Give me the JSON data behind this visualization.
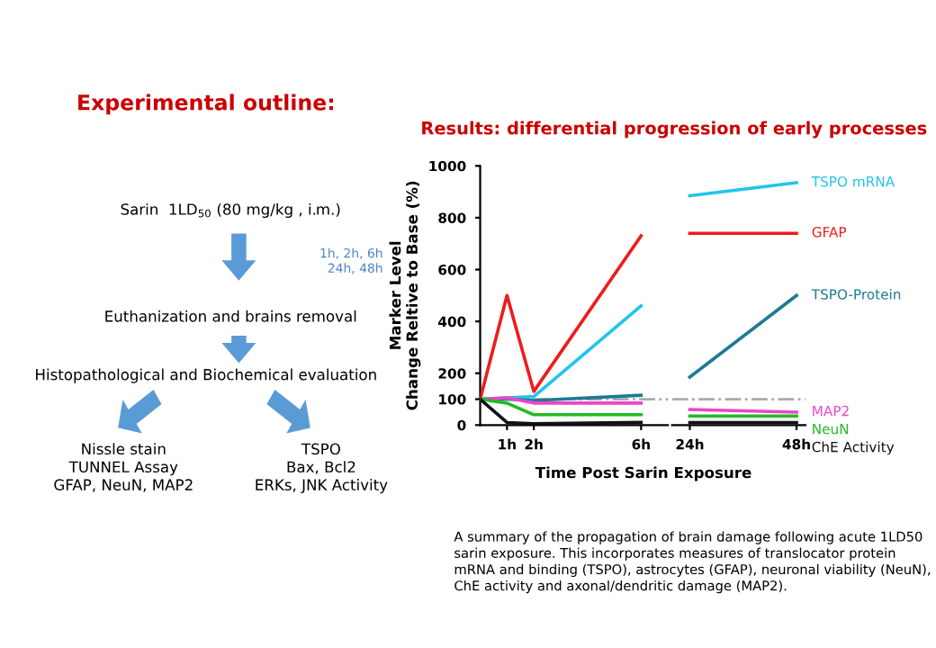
{
  "chart_data": [
    {
      "type": "other",
      "title": "Experimental outline:",
      "annotations": [
        "Sarin  1LD$_{50}$ (80 mg/kg , i.m.)",
        "1h, 2h, 6h\n  24h, 48h",
        "Euthanization and brains removal",
        "Histopathological and Biochemical evaluation",
        "Nissle stain\nTUNNEL Assay\nGFAP, NeuN, MAP2",
        "TSPO\nBax, Bcl2\nERKs, JNK Activity"
      ]
    },
    {
      "type": "line",
      "title": "Results: differential progression of early processes",
      "xlabel": "Time Post Sarin Exposure",
      "ylabel": "Marker Level\nChange Reltive to Base (%)",
      "x": [
        0,
        1,
        2,
        6
      ],
      "series": [
        {
          "color": "#22c4ec",
          "values": [
            100,
            105,
            110,
            460
          ]
        },
        {
          "color": "#ee1c1c",
          "values": [
            100,
            500,
            130,
            730
          ]
        },
        {
          "color": "#1d7a94",
          "values": [
            100,
            100,
            95,
            115
          ]
        },
        {
          "color": "#ee44cc",
          "values": [
            100,
            105,
            85,
            85
          ]
        },
        {
          "color": "#22bb22",
          "values": [
            100,
            85,
            40,
            40
          ]
        },
        {
          "color": "#111111",
          "values": [
            100,
            10,
            5,
            10
          ]
        }
      ],
      "xlim": [
        0,
        7
      ],
      "xticks": [
        {
          "value": 1,
          "label": "1h"
        },
        {
          "value": 2,
          "label": "2h"
        },
        {
          "value": 6,
          "label": "6h"
        }
      ],
      "ylim": [
        0,
        1000
      ],
      "yticks": [
        0,
        100,
        200,
        400,
        600,
        800,
        1000
      ],
      "ref_lines": [
        {
          "axis": "y",
          "value": 100,
          "color": "#aaaaaa",
          "line_style": "dashdot"
        }
      ],
      "grid": false,
      "legend": false,
      "marker": "none",
      "line_style": "solid",
      "annotations": [
        "A summary of the propagation of brain damage following acute 1LD50 sarin exposure. This incorporates measures of translocator protein mRNA and binding (TSPO), astrocytes (GFAP), neuronal viability (NeuN), ChE activity and axonal/dendritic damage (MAP2)."
      ]
    },
    {
      "type": "line",
      "x": [
        24,
        48
      ],
      "series": [
        {
          "name": "TSPO mRNA",
          "color": "#22c4ec",
          "values": [
            885,
            935
          ]
        },
        {
          "name": "GFAP",
          "color": "#ee1c1c",
          "values": [
            740,
            740
          ]
        },
        {
          "name": "TSPO-Protein",
          "color": "#1d7a94",
          "values": [
            185,
            500
          ]
        },
        {
          "name": "MAP2",
          "color": "#ee44cc",
          "values": [
            60,
            50
          ]
        },
        {
          "name": "NeuN",
          "color": "#22bb22",
          "values": [
            35,
            35
          ]
        },
        {
          "name": "ChE Activity",
          "color": "#111111",
          "values": [
            10,
            10
          ]
        }
      ],
      "xlim": [
        20,
        50
      ],
      "xticks": [
        {
          "value": 24,
          "label": "24h"
        },
        {
          "value": 48,
          "label": "48h"
        }
      ],
      "ylim": [
        0,
        1000
      ],
      "ref_lines": [
        {
          "axis": "y",
          "value": 100,
          "color": "#aaaaaa",
          "line_style": "dashdot"
        }
      ],
      "tick_labels": "x",
      "grid": false,
      "legend": false,
      "marker": "none",
      "line_style": "solid"
    }
  ]
}
